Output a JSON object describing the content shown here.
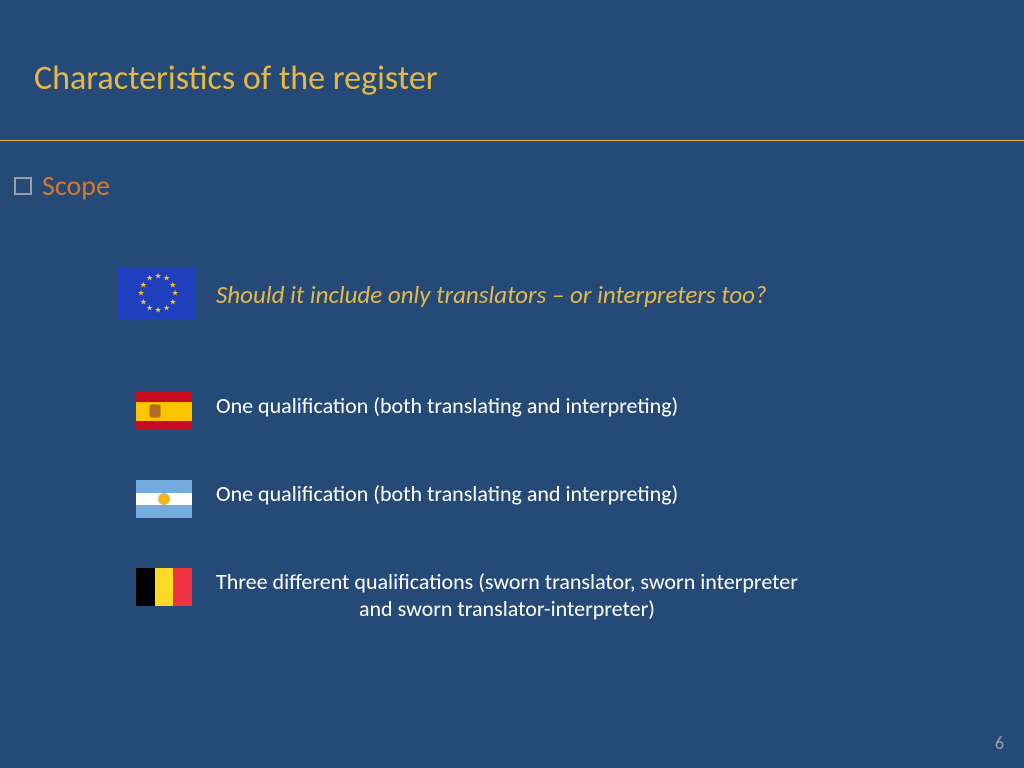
{
  "colors": {
    "background": "#254a78",
    "title": "#e6b947",
    "divider": "#e6b947",
    "scope_bullet_border": "#9aa0a6",
    "scope_text": "#d97828",
    "question_text": "#e6b947",
    "body_text": "#ffffff",
    "page_num": "#8fa0b8",
    "eu_blue": "#1f3fbf",
    "eu_star": "#f7ca18",
    "es_red": "#c60b1e",
    "es_yellow": "#ffc400",
    "es_emblem": "#b06a2a",
    "ar_blue": "#74acdf",
    "ar_white": "#ffffff",
    "ar_sun": "#f6b40e",
    "be_black": "#000000",
    "be_yellow": "#fdda24",
    "be_red": "#ef3340"
  },
  "title": "Characteristics of the register",
  "scope_label": "Scope",
  "question": "Should it include only translators – or interpreters too?",
  "items": [
    {
      "flag": "es",
      "text": "One qualification (both translating and interpreting)"
    },
    {
      "flag": "ar",
      "text": "One qualification (both translating and interpreting)"
    },
    {
      "flag": "be",
      "text_line1": "Three different qualifications (sworn translator, sworn interpreter",
      "text_line2": "and sworn translator-interpreter)"
    }
  ],
  "page_number": "6",
  "fonts": {
    "title_size": 34,
    "scope_size": 28,
    "question_size": 25,
    "body_size": 22,
    "page_num_size": 18
  }
}
